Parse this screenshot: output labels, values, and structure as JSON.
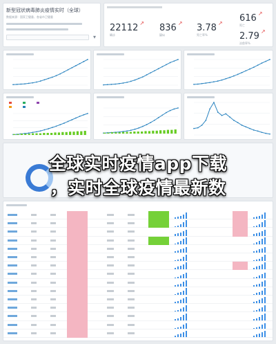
{
  "header": {
    "title": "新型冠状病毒肺炎疫情实时（全球）",
    "source_line": "数据来源：国家卫健委、各省市卫健委"
  },
  "stats": [
    {
      "value": "22112",
      "arrow": "↗",
      "label": "确诊"
    },
    {
      "value": "836",
      "arrow": "↗",
      "label": "疑似"
    },
    {
      "value": "3.78",
      "arrow": "↗",
      "label": "死亡率%"
    },
    {
      "value": "616",
      "arrow": "↗",
      "label": "死亡"
    },
    {
      "value": "2.79",
      "arrow": "↗",
      "label": "治愈率%"
    }
  ],
  "headline": {
    "line1": "全球实时疫情app下载",
    "line2": "，实时全球疫情最新数"
  },
  "colors": {
    "line_blue": "#2e86c1",
    "bar_green": "#66cc22",
    "bar_pink": "#f4b6c2",
    "spark_blue": "#3a8ee6",
    "arrow_red": "#e34b4b"
  },
  "chart_data": [
    {
      "type": "line",
      "title": "",
      "series": [
        {
          "values": [
            2,
            3,
            4,
            5,
            7,
            9,
            12,
            16,
            21,
            26,
            31,
            37,
            44,
            52,
            60,
            68,
            76,
            84,
            92,
            100
          ]
        }
      ]
    },
    {
      "type": "line",
      "title": "",
      "series": [
        {
          "values": [
            1,
            2,
            3,
            4,
            6,
            8,
            11,
            15,
            20,
            26,
            32,
            40,
            48,
            56,
            64,
            72,
            80,
            88,
            94,
            100
          ]
        }
      ]
    },
    {
      "type": "line",
      "title": "",
      "series": [
        {
          "values": [
            3,
            4,
            6,
            8,
            10,
            13,
            16,
            20,
            25,
            30,
            36,
            42,
            49,
            56,
            63,
            70,
            78,
            86,
            93,
            100
          ]
        }
      ]
    },
    {
      "type": "line",
      "title": "",
      "series": [
        {
          "values": [
            2,
            3,
            5,
            7,
            9,
            12,
            15,
            19,
            24,
            29,
            35,
            41,
            48,
            55,
            63,
            71,
            79,
            87,
            94,
            100
          ]
        }
      ]
    },
    {
      "type": "bar",
      "title": "",
      "series": [
        {
          "values": [
            2,
            2,
            3,
            3,
            3,
            4,
            4,
            4,
            5,
            5,
            5,
            6,
            6,
            7,
            7,
            8,
            8,
            9,
            9,
            10
          ]
        }
      ]
    },
    {
      "type": "line",
      "title": "",
      "series": [
        {
          "values": [
            2,
            3,
            4,
            5,
            6,
            8,
            10,
            13,
            17,
            22,
            28,
            35,
            43,
            52,
            62,
            72,
            82,
            90,
            96,
            100
          ]
        }
      ]
    },
    {
      "type": "line",
      "title": "",
      "series": [
        {
          "values": [
            20,
            22,
            30,
            45,
            80,
            100,
            70,
            60,
            65,
            55,
            45,
            38,
            30,
            25,
            20,
            15,
            12,
            8,
            5,
            3
          ]
        }
      ]
    }
  ],
  "table": {
    "rows": [
      {
        "pink": 1,
        "green": 0.9,
        "spark": [
          2,
          3,
          4,
          6,
          9
        ]
      },
      {
        "pink": 1,
        "green": 0.9,
        "spark": [
          1,
          2,
          4,
          7,
          10
        ]
      },
      {
        "pink": 1,
        "green": 0.0,
        "spark": [
          3,
          4,
          5,
          7,
          9
        ]
      },
      {
        "pink": 1,
        "green": 0.9,
        "spark": [
          1,
          3,
          5,
          8,
          10
        ]
      },
      {
        "pink": 1,
        "green": 0.0,
        "spark": [
          2,
          3,
          5,
          6,
          8
        ]
      },
      {
        "pink": 1,
        "green": 0.0,
        "spark": [
          1,
          2,
          3,
          6,
          9
        ]
      },
      {
        "pink": 1,
        "green": 0.0,
        "spark": [
          2,
          4,
          5,
          7,
          10
        ]
      },
      {
        "pink": 1,
        "green": 0.0,
        "spark": [
          1,
          2,
          4,
          6,
          8
        ]
      },
      {
        "pink": 1,
        "green": 0.0,
        "spark": [
          2,
          3,
          4,
          7,
          9
        ]
      },
      {
        "pink": 1,
        "green": 0.0,
        "spark": [
          1,
          3,
          4,
          6,
          10
        ]
      },
      {
        "pink": 1,
        "green": 0.0,
        "spark": [
          2,
          3,
          5,
          7,
          9
        ]
      },
      {
        "pink": 1,
        "green": 0.0,
        "spark": [
          1,
          2,
          4,
          6,
          9
        ]
      },
      {
        "pink": 1,
        "green": 0.0,
        "spark": [
          2,
          3,
          5,
          8,
          10
        ]
      },
      {
        "pink": 1,
        "green": 0.0,
        "spark": [
          1,
          2,
          3,
          6,
          8
        ]
      },
      {
        "pink": 1,
        "green": 0.0,
        "spark": [
          2,
          4,
          5,
          7,
          9
        ]
      }
    ]
  }
}
